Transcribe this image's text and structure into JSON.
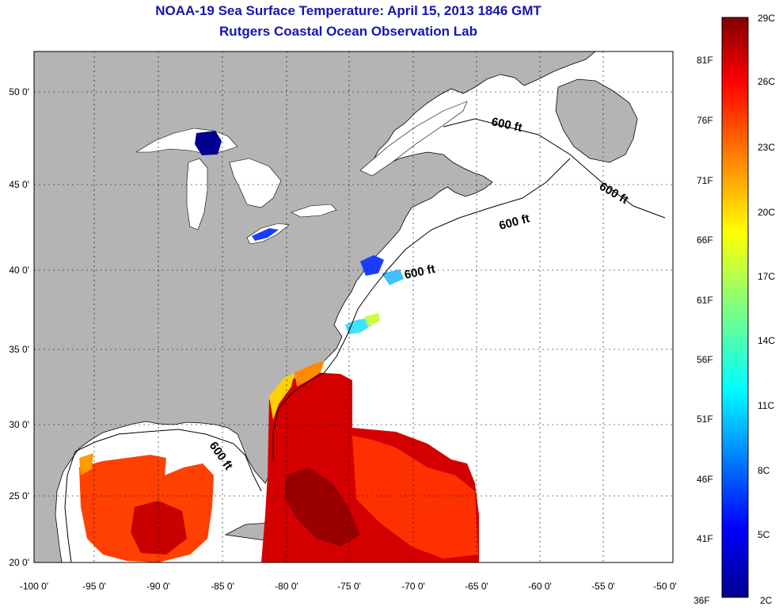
{
  "title": "NOAA-19 Sea Surface Temperature:  April 15, 2013 1846 GMT",
  "subtitle": "Rutgers Coastal Ocean Observation Lab",
  "map": {
    "lat_labels": [
      "50 0'",
      "45 0'",
      "40 0'",
      "35 0'",
      "30 0'",
      "25 0'",
      "20 0'"
    ],
    "lon_labels": [
      "-100 0'",
      "-95 0'",
      "-90 0'",
      "-85 0'",
      "-80 0'",
      "-75 0'",
      "-70 0'",
      "-65 0'",
      "-60 0'",
      "-55 0'",
      "-50 0'"
    ],
    "depth_contour_label": "600 ft",
    "land_color": "#b4b4b4",
    "no_data_color": "#ffffff"
  },
  "colorbar": {
    "celsius_labels": [
      "29C",
      "26C",
      "23C",
      "20C",
      "17C",
      "14C",
      "11C",
      "8C",
      "5C",
      "2C"
    ],
    "fahrenheit_labels": [
      "81F",
      "76F",
      "71F",
      "66F",
      "61F",
      "56F",
      "51F",
      "46F",
      "41F",
      "36F"
    ],
    "colors": [
      "#800000",
      "#ff0000",
      "#ff8000",
      "#ffff00",
      "#80ff80",
      "#00ffff",
      "#0080ff",
      "#0000ff",
      "#00008f"
    ]
  }
}
